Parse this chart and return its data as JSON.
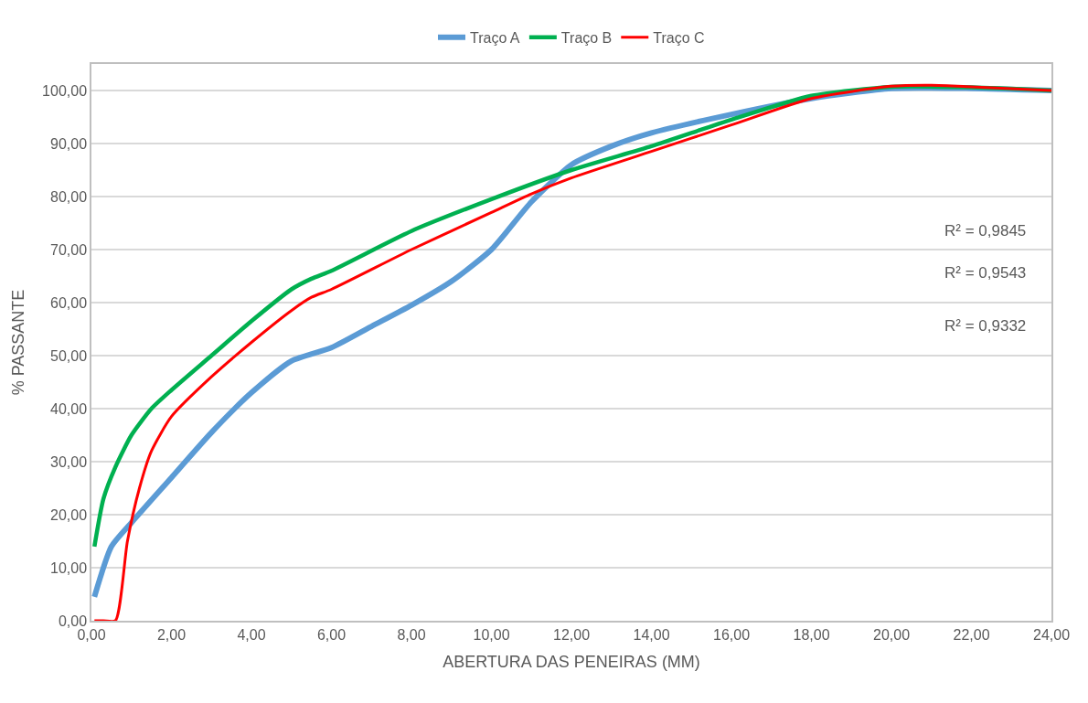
{
  "chart_data": {
    "type": "line",
    "xlabel": "ABERTURA DAS PENEIRAS (MM)",
    "ylabel": "% PASSANTE",
    "xlim": [
      0,
      24
    ],
    "xticks": [
      {
        "value": 0,
        "label": "0,00"
      },
      {
        "value": 2,
        "label": "2,00"
      },
      {
        "value": 4,
        "label": "4,00"
      },
      {
        "value": 6,
        "label": "6,00"
      },
      {
        "value": 8,
        "label": "8,00"
      },
      {
        "value": 10,
        "label": "10,00"
      },
      {
        "value": 12,
        "label": "12,00"
      },
      {
        "value": 14,
        "label": "14,00"
      },
      {
        "value": 16,
        "label": "16,00"
      },
      {
        "value": 18,
        "label": "18,00"
      },
      {
        "value": 20,
        "label": "20,00"
      },
      {
        "value": 22,
        "label": "22,00"
      },
      {
        "value": 24,
        "label": "24,00"
      }
    ],
    "ylim": [
      0,
      105
    ],
    "yticks": [
      {
        "value": 0,
        "label": "0,00"
      },
      {
        "value": 10,
        "label": "10,00"
      },
      {
        "value": 20,
        "label": "20,00"
      },
      {
        "value": 30,
        "label": "30,00"
      },
      {
        "value": 40,
        "label": "40,00"
      },
      {
        "value": 50,
        "label": "50,00"
      },
      {
        "value": 60,
        "label": "60,00"
      },
      {
        "value": 70,
        "label": "70,00"
      },
      {
        "value": 80,
        "label": "80,00"
      },
      {
        "value": 90,
        "label": "90,00"
      },
      {
        "value": 100,
        "label": "100,00"
      }
    ],
    "grid": "y",
    "legend": "top",
    "marker": "none",
    "line_style": "solid",
    "series": [
      {
        "name": "Traço A",
        "color": "#5b9bd5",
        "x": [
          0.075,
          0.5,
          1,
          2,
          3,
          4,
          5,
          6,
          7,
          8,
          9,
          10,
          11,
          12,
          13,
          14,
          16,
          18,
          20,
          22,
          24
        ],
        "values": [
          4.5,
          14,
          18.5,
          27,
          35.5,
          43,
          49,
          51.5,
          55.5,
          59.5,
          64,
          70,
          79,
          86,
          89.5,
          92,
          95.5,
          98.5,
          100.4,
          100.4,
          100
        ]
      },
      {
        "name": "Traço B",
        "color": "#00b050",
        "x": [
          0.075,
          0.3,
          0.6,
          1,
          1.5,
          2,
          3,
          4,
          5,
          5.5,
          6,
          8,
          10,
          12,
          14,
          16,
          18,
          20,
          22,
          24
        ],
        "values": [
          14,
          23,
          29,
          35,
          40,
          43.5,
          50,
          56.5,
          62.5,
          64.5,
          66,
          73.5,
          79.5,
          85,
          89.5,
          94.5,
          99,
          100.7,
          100.6,
          100
        ]
      },
      {
        "name": "Traço C",
        "color": "#ff0000",
        "x": [
          0.075,
          0.3,
          0.6,
          0.9,
          1.2,
          1.5,
          2,
          3,
          4,
          5,
          5.5,
          6,
          8,
          10,
          11,
          12,
          14,
          16,
          18,
          20,
          21,
          22,
          24
        ],
        "values": [
          0,
          0,
          0,
          15,
          25,
          32,
          38.5,
          46,
          52.5,
          58.5,
          61,
          62.5,
          70,
          77,
          80.5,
          83.5,
          88.5,
          93.5,
          98.5,
          100.8,
          101,
          100.7,
          100
        ]
      }
    ],
    "annotations": [
      "R² = 0,9845",
      "R² = 0,9543",
      "R² = 0,9332"
    ]
  }
}
